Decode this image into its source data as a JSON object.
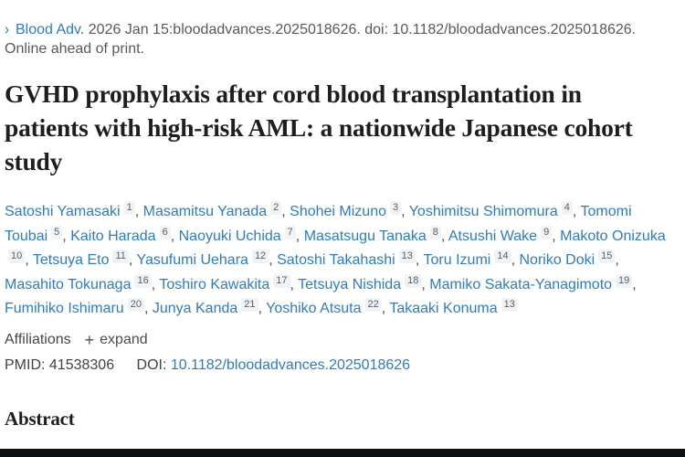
{
  "theme": {
    "link_color": "#2e7cbe",
    "footer_bar_color": "#0e0f12",
    "badge_background": "#f1f2f3"
  },
  "citation": {
    "chevron_icon": "›",
    "journal_link": "Blood Adv",
    "rest": ". 2026 Jan 15:bloodadvances.2025018626. doi: 10.1182/bloodadvances.2025018626.",
    "online_ahead": "Online ahead of print."
  },
  "title": "GVHD prophylaxis after cord blood transplantation in patients with high-risk AML: a nationwide Japanese cohort study",
  "authors": [
    {
      "name": "Satoshi Yamasaki",
      "sup": "1"
    },
    {
      "name": "Masamitsu Yanada",
      "sup": "2"
    },
    {
      "name": "Shohei Mizuno",
      "sup": "3"
    },
    {
      "name": "Yoshimitsu Shimomura",
      "sup": "4"
    },
    {
      "name": "Tomomi Toubai",
      "sup": "5"
    },
    {
      "name": "Kaito Harada",
      "sup": "6"
    },
    {
      "name": "Naoyuki Uchida",
      "sup": "7"
    },
    {
      "name": "Masatsugu Tanaka",
      "sup": "8"
    },
    {
      "name": "Atsushi Wake",
      "sup": "9"
    },
    {
      "name": "Makoto Onizuka",
      "sup": "10"
    },
    {
      "name": "Tetsuya Eto",
      "sup": "11"
    },
    {
      "name": "Yasufumi Uehara",
      "sup": "12"
    },
    {
      "name": "Satoshi Takahashi",
      "sup": "13"
    },
    {
      "name": "Toru Izumi",
      "sup": "14"
    },
    {
      "name": "Noriko Doki",
      "sup": "15"
    },
    {
      "name": "Masahito Tokunaga",
      "sup": "16"
    },
    {
      "name": "Toshiro Kawakita",
      "sup": "17"
    },
    {
      "name": "Tetsuya Nishida",
      "sup": "18"
    },
    {
      "name": "Mamiko Sakata-Yanagimoto",
      "sup": "19"
    },
    {
      "name": "Fumihiko Ishimaru",
      "sup": "20"
    },
    {
      "name": "Junya Kanda",
      "sup": "21"
    },
    {
      "name": "Yoshiko Atsuta",
      "sup": "22"
    },
    {
      "name": "Takaaki Konuma",
      "sup": "13"
    }
  ],
  "affiliations": {
    "label": "Affiliations",
    "expand_icon": "+",
    "expand_label": "expand"
  },
  "identifiers": {
    "pmid_label": "PMID:",
    "pmid_value": "41538306",
    "doi_label": "DOI:",
    "doi_link": "10.1182/bloodadvances.2025018626"
  },
  "abstract": {
    "heading": "Abstract"
  }
}
